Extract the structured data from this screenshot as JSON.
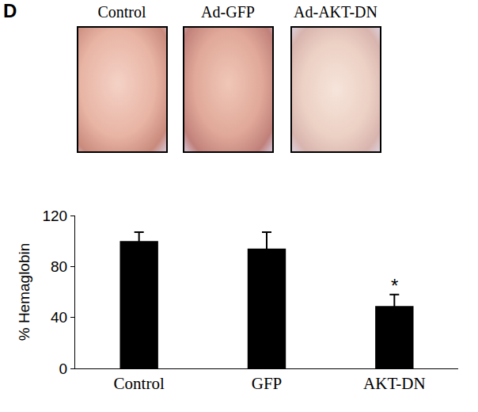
{
  "panel": "D",
  "photos": [
    {
      "label": "Control"
    },
    {
      "label": "Ad-GFP"
    },
    {
      "label": "Ad-AKT-DN"
    }
  ],
  "chart_data": {
    "type": "bar",
    "categories": [
      "Control",
      "GFP",
      "AKT-DN"
    ],
    "values": [
      100,
      94,
      49
    ],
    "errors": [
      7,
      13,
      9
    ],
    "color": "#000000",
    "y_label": "% Hemaglobin",
    "ylim": [
      0,
      120
    ],
    "yticks": [
      0,
      40,
      80,
      120
    ],
    "grid": false,
    "annotations": [
      {
        "category": "AKT-DN",
        "text": "*"
      }
    ]
  }
}
